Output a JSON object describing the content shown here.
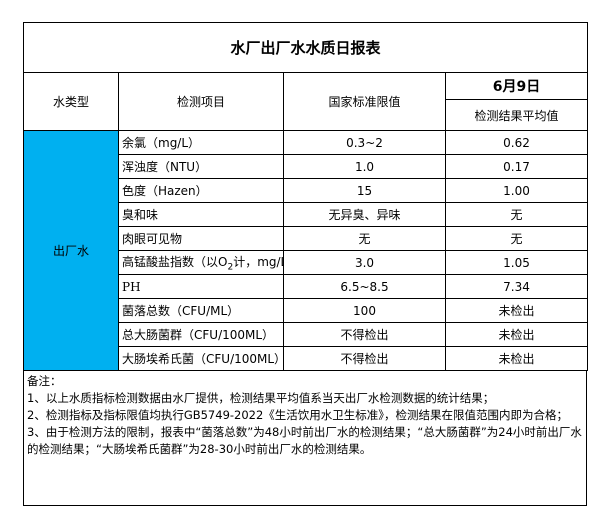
{
  "title": "水厂出厂水水质日报表",
  "headers": {
    "water_type": "水类型",
    "item": "检测项目",
    "standard": "国家标准限值",
    "date": "6月9日",
    "result": "检测结果平均值"
  },
  "water_type_value": "出厂水",
  "highlight_color": "#00B0F0",
  "rows": [
    {
      "item": "余氯（mg/L）",
      "standard": "0.3~2",
      "result": "0.62"
    },
    {
      "item": "浑浊度（NTU）",
      "standard": "1.0",
      "result": "0.17"
    },
    {
      "item": "色度（Hazen）",
      "standard": "15",
      "result": "1.00"
    },
    {
      "item": "臭和味",
      "standard": "无异臭、异味",
      "result": "无"
    },
    {
      "item": "肉眼可见物",
      "standard": "无",
      "result": "无"
    },
    {
      "item_pre": "高锰酸盐指数（以O",
      "item_sub": "2",
      "item_post": "计，mg/L）",
      "standard": "3.0",
      "result": "1.05"
    },
    {
      "item": "PH",
      "standard": "6.5~8.5",
      "result": "7.34"
    },
    {
      "item": "菌落总数（CFU/ML）",
      "standard": "100",
      "result": "未检出"
    },
    {
      "item": "总大肠菌群（CFU/100ML）",
      "standard": "不得检出",
      "result": "未检出"
    },
    {
      "item": "大肠埃希氏菌（CFU/100ML）",
      "standard": "不得检出",
      "result": "未检出"
    }
  ],
  "notes": {
    "heading": "备注：",
    "lines": [
      "1、以上水质指标检测数据由水厂提供，检测结果平均值系当天出厂水检测数据的统计结果；",
      "2、检测指标及指标限值均执行GB5749-2022《生活饮用水卫生标准》，检测结果在限值范围内即为合格；",
      "3、由于检测方法的限制，报表中“菌落总数”为48小时前出厂水的检测结果；“总大肠菌群”为24小时前出厂水的检测结果；“大肠埃希氏菌群”为28-30小时前出厂水的检测结果。"
    ]
  }
}
